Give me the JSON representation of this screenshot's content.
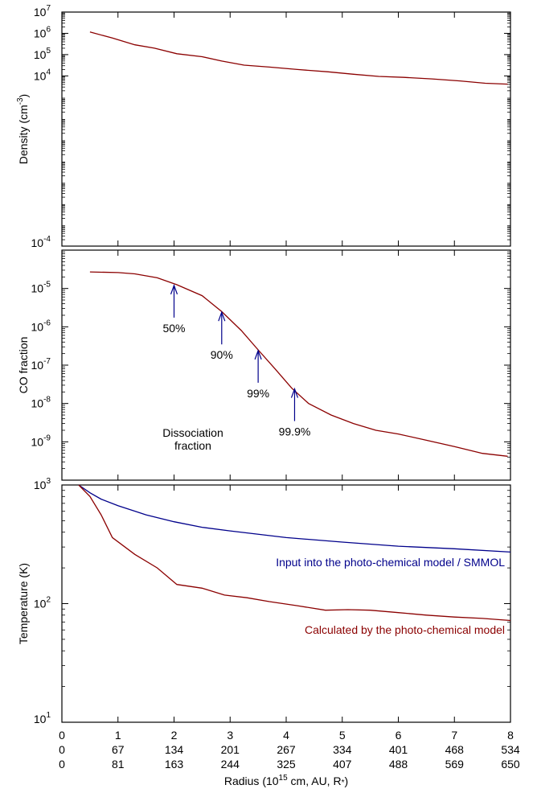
{
  "chart_data": [
    {
      "type": "line",
      "ylabel": "Density (cm",
      "ylabel_sup": "-3",
      "ylabel_end": ")",
      "yscale": "log",
      "ylim_exp": [
        -4,
        7
      ],
      "ytick_exps": [
        4,
        5,
        6,
        7
      ],
      "ytick_bottom_exp": -4,
      "xlim": [
        0,
        8
      ],
      "series": [
        {
          "color": "#8b0000",
          "x": [
            0.5,
            0.9,
            1.3,
            1.65,
            2.05,
            2.5,
            2.85,
            3.25,
            3.7,
            4.2,
            4.75,
            5.2,
            5.65,
            6.1,
            6.6,
            7.1,
            7.55,
            7.95
          ],
          "y": [
            1150000,
            600000,
            290000,
            200000,
            110000,
            80000,
            50000,
            32000,
            26000,
            20000,
            15500,
            12000,
            9500,
            8500,
            7200,
            5800,
            4500,
            4100
          ]
        }
      ]
    },
    {
      "type": "line",
      "ylabel": "CO fraction",
      "yscale": "log",
      "ylim_exp": [
        -10,
        -4
      ],
      "ytick_exps": [
        -9,
        -8,
        -7,
        -6,
        -5
      ],
      "xlim": [
        0,
        8
      ],
      "series": [
        {
          "color": "#8b0000",
          "x": [
            0.5,
            1.0,
            1.3,
            1.7,
            2.05,
            2.5,
            2.85,
            3.2,
            3.5,
            3.8,
            4.1,
            4.4,
            4.8,
            5.2,
            5.6,
            6.0,
            6.5,
            7.0,
            7.5,
            7.95
          ],
          "y": [
            2.7e-05,
            2.6e-05,
            2.4e-05,
            1.9e-05,
            1.25e-05,
            6.5e-06,
            2.5e-06,
            8e-07,
            2.5e-07,
            8e-08,
            2.5e-08,
            1e-08,
            5e-09,
            3e-09,
            2e-09,
            1.6e-09,
            1.1e-09,
            7.5e-10,
            5e-10,
            4.2e-10
          ]
        }
      ],
      "arrows": [
        {
          "x": 2.0,
          "tip": 1.2e-05,
          "label": "50%"
        },
        {
          "x": 2.85,
          "tip": 2.4e-06,
          "label": "90%"
        },
        {
          "x": 3.5,
          "tip": 2.4e-07,
          "label": "99%"
        },
        {
          "x": 4.15,
          "tip": 2.4e-08,
          "label": "99.9%"
        }
      ],
      "annotation": [
        "Dissociation",
        "fraction"
      ]
    },
    {
      "type": "line",
      "ylabel": "Temperature (K)",
      "yscale": "log",
      "ylim_exp": [
        1,
        3
      ],
      "ytick_exps": [
        1,
        2,
        3
      ],
      "xlim": [
        0,
        8
      ],
      "series": [
        {
          "name": "Input into the photo-chemical model / SMMOL",
          "color": "#00008b",
          "x": [
            0.3,
            0.5,
            0.7,
            1.0,
            1.5,
            2.0,
            2.5,
            3.0,
            4.0,
            5.0,
            6.0,
            7.0,
            8.0
          ],
          "y": [
            1000,
            860,
            760,
            670,
            560,
            490,
            440,
            410,
            360,
            330,
            305,
            290,
            272
          ]
        },
        {
          "name": "Calculated by the photo-chemical model",
          "color": "#8b0000",
          "x": [
            0.3,
            0.5,
            0.7,
            0.9,
            1.3,
            1.7,
            2.05,
            2.5,
            2.9,
            3.3,
            3.7,
            4.2,
            4.7,
            5.1,
            5.5,
            6.0,
            6.5,
            7.0,
            7.5,
            8.0
          ],
          "y": [
            1000,
            800,
            560,
            360,
            260,
            200,
            145,
            135,
            118,
            112,
            104,
            96,
            88,
            89,
            88,
            84,
            80,
            77,
            75,
            72
          ]
        }
      ],
      "xlabel": "Radius (10",
      "xlabel_sup": "15",
      "xlabel_end": " cm, AU, R",
      "xlabel_star": "*",
      "xlabel_close": ")",
      "x_ticks": [
        0,
        1,
        2,
        3,
        4,
        5,
        6,
        7,
        8
      ],
      "x_tick_rows": [
        [
          "0",
          "1",
          "2",
          "3",
          "4",
          "5",
          "6",
          "7",
          "8"
        ],
        [
          "0",
          "67",
          "134",
          "201",
          "267",
          "334",
          "401",
          "468",
          "534"
        ],
        [
          "0",
          "81",
          "163",
          "244",
          "325",
          "407",
          "488",
          "569",
          "650"
        ]
      ]
    }
  ]
}
